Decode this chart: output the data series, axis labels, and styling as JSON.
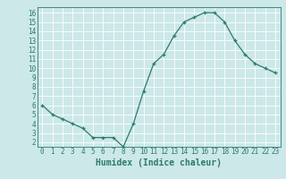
{
  "x": [
    0,
    1,
    2,
    3,
    4,
    5,
    6,
    7,
    8,
    9,
    10,
    11,
    12,
    13,
    14,
    15,
    16,
    17,
    18,
    19,
    20,
    21,
    22,
    23
  ],
  "y": [
    6,
    5,
    4.5,
    4,
    3.5,
    2.5,
    2.5,
    2.5,
    1.5,
    4,
    7.5,
    10.5,
    11.5,
    13.5,
    15,
    15.5,
    16,
    16,
    15,
    13,
    11.5,
    10.5,
    10,
    9.5
  ],
  "xlabel": "Humidex (Indice chaleur)",
  "xlim": [
    -0.5,
    23.5
  ],
  "ylim": [
    1.5,
    16.6
  ],
  "yticks": [
    2,
    3,
    4,
    5,
    6,
    7,
    8,
    9,
    10,
    11,
    12,
    13,
    14,
    15,
    16
  ],
  "xticks": [
    0,
    1,
    2,
    3,
    4,
    5,
    6,
    7,
    8,
    9,
    10,
    11,
    12,
    13,
    14,
    15,
    16,
    17,
    18,
    19,
    20,
    21,
    22,
    23
  ],
  "line_color": "#2d7a6e",
  "bg_color": "#cce8e8",
  "grid_color": "#ffffff",
  "font_color": "#2d7a6e",
  "tick_fontsize": 5.5,
  "xlabel_fontsize": 7
}
